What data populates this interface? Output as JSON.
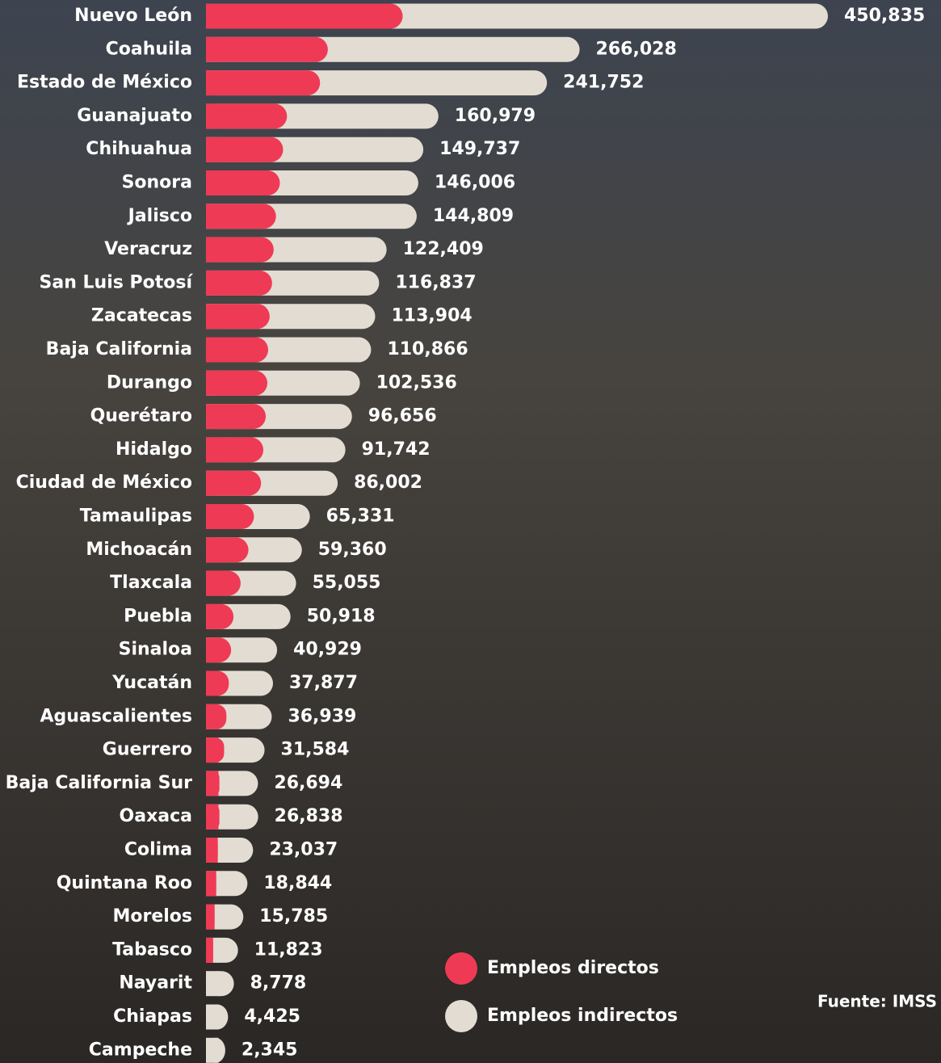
{
  "chart_data": {
    "type": "stacked_bar_horizontal",
    "categories": [
      "Nuevo León",
      "Coahuila",
      "Estado de México",
      "Guanajuato",
      "Chihuahua",
      "Sonora",
      "Jalisco",
      "Veracruz",
      "San Luis Potosí",
      "Zacatecas",
      "Baja California",
      "Durango",
      "Querétaro",
      "Hidalgo",
      "Ciudad de México",
      "Tamaulipas",
      "Michoacán",
      "Tlaxcala",
      "Puebla",
      "Sinaloa",
      "Yucatán",
      "Aguascalientes",
      "Guerrero",
      "Baja California Sur",
      "Oaxaca",
      "Colima",
      "Quintana Roo",
      "Morelos",
      "Tabasco",
      "Nayarit",
      "Chiapas",
      "Campeche"
    ],
    "series": [
      {
        "name": "Empleos directos",
        "color": "#ef3a55",
        "values": [
          146400,
          90700,
          84900,
          60300,
          57400,
          55000,
          52100,
          50400,
          49200,
          47400,
          46300,
          45700,
          44500,
          42700,
          41000,
          35700,
          31600,
          25800,
          20500,
          18700,
          17000,
          15200,
          13500,
          10000,
          10000,
          8800,
          7600,
          6400,
          5300,
          0,
          0,
          0
        ]
      },
      {
        "name": "Empleos indirectos",
        "color": "#e3dcd2",
        "values": [
          304435,
          175328,
          156852,
          100679,
          92337,
          91006,
          92709,
          72009,
          67637,
          66504,
          64566,
          56836,
          52156,
          49042,
          45002,
          29631,
          27760,
          29255,
          30418,
          22229,
          20877,
          21739,
          18084,
          16694,
          16838,
          14237,
          11244,
          9385,
          6523,
          8778,
          4425,
          2345
        ]
      }
    ],
    "totals": [
      {
        "value": 450835,
        "label": "450,835"
      },
      {
        "value": 266028,
        "label": "266,028"
      },
      {
        "value": 241752,
        "label": "241,752"
      },
      {
        "value": 160979,
        "label": "160,979"
      },
      {
        "value": 149737,
        "label": "149,737"
      },
      {
        "value": 146006,
        "label": "146,006"
      },
      {
        "value": 144809,
        "label": "144,809"
      },
      {
        "value": 122409,
        "label": "122,409"
      },
      {
        "value": 116837,
        "label": "116,837"
      },
      {
        "value": 113904,
        "label": "113,904"
      },
      {
        "value": 110866,
        "label": "110,866"
      },
      {
        "value": 102536,
        "label": "102,536"
      },
      {
        "value": 96656,
        "label": "96,656"
      },
      {
        "value": 91742,
        "label": "91,742"
      },
      {
        "value": 86002,
        "label": "86,002"
      },
      {
        "value": 65331,
        "label": "65,331"
      },
      {
        "value": 59360,
        "label": "59,360"
      },
      {
        "value": 55055,
        "label": "55,055"
      },
      {
        "value": 50918,
        "label": "50,918"
      },
      {
        "value": 40929,
        "label": "40,929"
      },
      {
        "value": 37877,
        "label": "37,877"
      },
      {
        "value": 36939,
        "label": "36,939"
      },
      {
        "value": 31584,
        "label": "31,584"
      },
      {
        "value": 26694,
        "label": "26,694"
      },
      {
        "value": 26838,
        "label": "26,838"
      },
      {
        "value": 23037,
        "label": "23,037"
      },
      {
        "value": 18844,
        "label": "18,844"
      },
      {
        "value": 15785,
        "label": "15,785"
      },
      {
        "value": 11823,
        "label": "11,823"
      },
      {
        "value": 8778,
        "label": "8,778"
      },
      {
        "value": 4425,
        "label": "4,425"
      },
      {
        "value": 2345,
        "label": "2,345"
      }
    ],
    "source": "Fuente: IMSS"
  }
}
